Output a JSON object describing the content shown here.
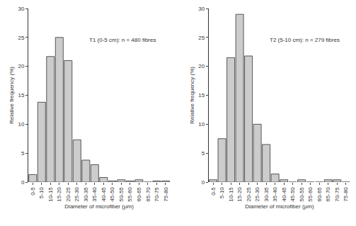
{
  "chart_data": [
    {
      "type": "bar",
      "title": "T1 (0-5 cm): n = 480 fibres",
      "x_label": "Diameter of microfiber (μm)",
      "y_label": "Relative frequency (%)",
      "categories": [
        "0-5",
        "5-10",
        "10-15",
        "15-20",
        "20-25",
        "25-30",
        "30-35",
        "35-40",
        "40-45",
        "45-50",
        "50-55",
        "55-60",
        "60-65",
        "65-70",
        "70-75",
        "75-80"
      ],
      "values": [
        1.3,
        13.8,
        21.7,
        25.0,
        21.0,
        7.3,
        3.8,
        3.0,
        0.8,
        0.2,
        0.4,
        0.2,
        0.4,
        0,
        0.2,
        0.2
      ],
      "color": "#cccccc",
      "ylim": [
        0,
        30
      ],
      "yticks": [
        0,
        5,
        10,
        15,
        20,
        25,
        30
      ],
      "grid": false
    },
    {
      "type": "bar",
      "title": "T2 (5-10 cm): n = 279 fibres",
      "x_label": "Diameter of microfiber (μm)",
      "y_label": "Relative frequency (%)",
      "categories": [
        "0-5",
        "5-10",
        "10-15",
        "15-20",
        "20-25",
        "25-30",
        "30-35",
        "35-40",
        "40-45",
        "45-50",
        "50-55",
        "55-60",
        "60-65",
        "65-70",
        "70-75",
        "75-80"
      ],
      "values": [
        0.4,
        7.5,
        21.5,
        29.0,
        21.8,
        10.0,
        6.5,
        1.4,
        0.4,
        0,
        0.4,
        0,
        0,
        0.4,
        0.4,
        0
      ],
      "color": "#cccccc",
      "ylim": [
        0,
        30
      ],
      "yticks": [
        0,
        5,
        10,
        15,
        20,
        25,
        30
      ],
      "grid": false
    }
  ]
}
